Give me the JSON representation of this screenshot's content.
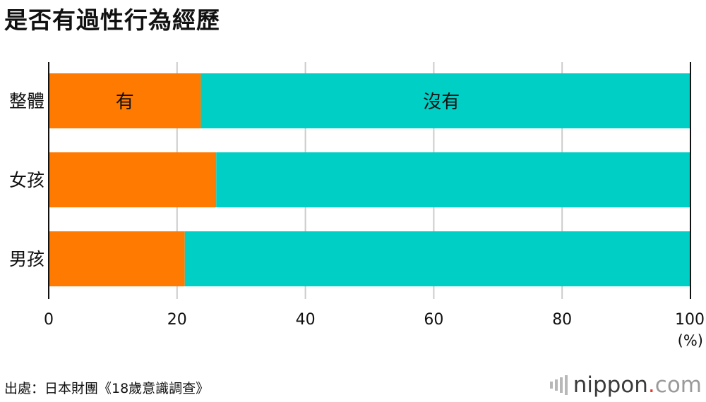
{
  "title": "是否有過性行為經歷",
  "source": "出處：日本財團《18歲意識調查》",
  "brand": {
    "name": "nippon",
    "dot": ".",
    "suffix": "com",
    "icon": "nippon-bars-icon"
  },
  "colors": {
    "yes": "#ff7a00",
    "no": "#00cfc6",
    "grid": "#cccccc",
    "axis": "#111111"
  },
  "chart_data": {
    "type": "bar",
    "orientation": "horizontal",
    "stacked": true,
    "categories": [
      "整體",
      "女孩",
      "男孩"
    ],
    "series": [
      {
        "name": "有",
        "values": [
          23.7,
          26.1,
          21.2
        ]
      },
      {
        "name": "沒有",
        "values": [
          76.3,
          73.9,
          78.8
        ]
      }
    ],
    "xlim": [
      0,
      100
    ],
    "xticks": [
      "0",
      "20",
      "40",
      "60",
      "80",
      "100"
    ],
    "xunit": "(%)",
    "grid": true,
    "legend": "labels inside first bar"
  }
}
